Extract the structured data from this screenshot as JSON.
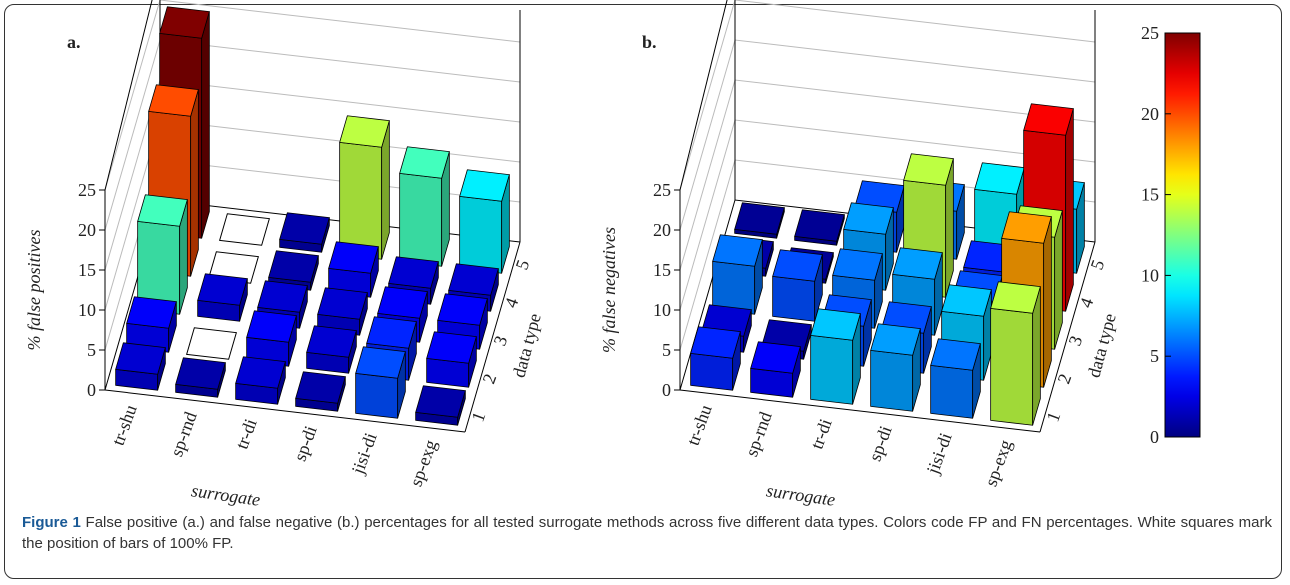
{
  "chart_data": [
    {
      "type": "bar3d",
      "panel_label": "a.",
      "zlabel": "% false positives",
      "xlabel": "surrogate",
      "ylabel": "data type",
      "categories": [
        "tr-shu",
        "sp-rnd",
        "tr-di",
        "sp-di",
        "jisi-di",
        "sp-exg"
      ],
      "data_types": [
        1,
        2,
        3,
        4,
        5
      ],
      "values": [
        [
          2,
          3,
          11,
          20,
          25
        ],
        [
          1,
          100,
          2,
          100,
          100
        ],
        [
          2,
          3,
          2,
          1,
          1
        ],
        [
          1,
          2,
          2,
          3,
          14
        ],
        [
          5,
          4,
          3,
          2,
          11
        ],
        [
          1,
          3,
          3,
          2,
          9
        ]
      ],
      "zlim": [
        0,
        25
      ],
      "zticks": [
        0,
        5,
        10,
        15,
        20,
        25
      ],
      "colormap": "jet",
      "clim": [
        0,
        25
      ]
    },
    {
      "type": "bar3d",
      "panel_label": "b.",
      "zlabel": "% false negatives",
      "xlabel": "surrogate",
      "ylabel": "data type",
      "categories": [
        "tr-shu",
        "sp-rnd",
        "tr-di",
        "sp-di",
        "jisi-di",
        "sp-exg"
      ],
      "data_types": [
        1,
        2,
        3,
        4,
        5
      ],
      "values": [
        [
          4,
          2,
          6,
          1,
          0.5
        ],
        [
          3,
          1,
          5,
          0.5,
          0.5
        ],
        [
          8,
          5,
          6,
          7,
          5
        ],
        [
          7,
          5,
          7,
          14,
          6
        ],
        [
          6,
          8,
          5,
          4,
          9
        ],
        [
          14,
          18,
          14,
          22,
          8
        ]
      ],
      "zlim": [
        0,
        25
      ],
      "zticks": [
        0,
        5,
        10,
        15,
        20,
        25
      ],
      "colormap": "jet",
      "clim": [
        0,
        25
      ]
    },
    {
      "type": "colorbar",
      "colormap": "jet",
      "lim": [
        0,
        25
      ],
      "ticks": [
        0,
        5,
        10,
        15,
        20,
        25
      ]
    }
  ],
  "caption": {
    "label": "Figure 1",
    "text": "False positive (a.) and false negative (b.) percentages for all tested surrogate methods across five different data types. Colors code FP and FN percentages. White squares mark the position of bars of 100% FP."
  }
}
